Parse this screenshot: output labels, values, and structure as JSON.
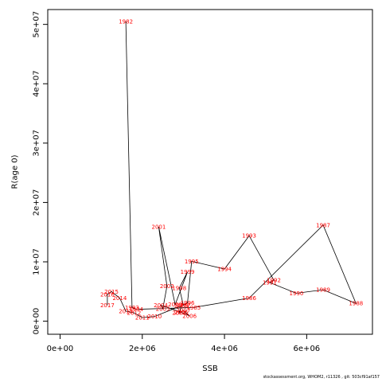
{
  "chart_data": {
    "type": "scatter",
    "xlabel": "SSB",
    "ylabel": "R(age 0)",
    "xlim": [
      -300000,
      7600000
    ],
    "ylim": [
      -2200000,
      52500000
    ],
    "x_ticks": [
      {
        "value": 0,
        "label": "0e+00"
      },
      {
        "value": 2000000,
        "label": "2e+06"
      },
      {
        "value": 4000000,
        "label": "4e+06"
      },
      {
        "value": 6000000,
        "label": "6e+06"
      }
    ],
    "y_ticks": [
      {
        "value": 0,
        "label": "0e+00"
      },
      {
        "value": 10000000,
        "label": "1e+07"
      },
      {
        "value": 20000000,
        "label": "2e+07"
      },
      {
        "value": 30000000,
        "label": "3e+07"
      },
      {
        "value": 40000000,
        "label": "4e+07"
      },
      {
        "value": 50000000,
        "label": "5e+07"
      }
    ],
    "line_color": "#000000",
    "label_color": "#ff0000",
    "points": [
      {
        "year": "1982",
        "ssb": 1600000,
        "rec": 50500000
      },
      {
        "year": "1983",
        "ssb": 1750000,
        "rec": 2300000
      },
      {
        "year": "1984",
        "ssb": 1850000,
        "rec": 2000000
      },
      {
        "year": "1985",
        "ssb": 3250000,
        "rec": 2300000
      },
      {
        "year": "1986",
        "ssb": 4600000,
        "rec": 3900000
      },
      {
        "year": "1987",
        "ssb": 6400000,
        "rec": 16200000
      },
      {
        "year": "1988",
        "ssb": 7200000,
        "rec": 3000000
      },
      {
        "year": "1989",
        "ssb": 6400000,
        "rec": 5300000
      },
      {
        "year": "1990",
        "ssb": 5750000,
        "rec": 4700000
      },
      {
        "year": "1991",
        "ssb": 5100000,
        "rec": 6500000
      },
      {
        "year": "1992",
        "ssb": 5200000,
        "rec": 6900000
      },
      {
        "year": "1993",
        "ssb": 4600000,
        "rec": 14400000
      },
      {
        "year": "1994",
        "ssb": 4000000,
        "rec": 8800000
      },
      {
        "year": "1995",
        "ssb": 3200000,
        "rec": 10100000
      },
      {
        "year": "1996",
        "ssb": 3100000,
        "rec": 3100000
      },
      {
        "year": "1997",
        "ssb": 3000000,
        "rec": 2700000
      },
      {
        "year": "1998",
        "ssb": 2900000,
        "rec": 5600000
      },
      {
        "year": "1999",
        "ssb": 3100000,
        "rec": 8300000
      },
      {
        "year": "2000",
        "ssb": 2800000,
        "rec": 2800000
      },
      {
        "year": "2001",
        "ssb": 2400000,
        "rec": 15900000
      },
      {
        "year": "2002",
        "ssb": 2600000,
        "rec": 5900000
      },
      {
        "year": "2003",
        "ssb": 2500000,
        "rec": 2100000
      },
      {
        "year": "2004",
        "ssb": 2450000,
        "rec": 2700000
      },
      {
        "year": "2005",
        "ssb": 2950000,
        "rec": 1500000
      },
      {
        "year": "2006",
        "ssb": 3150000,
        "rec": 900000
      },
      {
        "year": "2007",
        "ssb": 3000000,
        "rec": 1800000
      },
      {
        "year": "2008",
        "ssb": 2900000,
        "rec": 1400000
      },
      {
        "year": "2009",
        "ssb": 2950000,
        "rec": 2600000
      },
      {
        "year": "2010",
        "ssb": 2300000,
        "rec": 800000
      },
      {
        "year": "2011",
        "ssb": 2000000,
        "rec": 600000
      },
      {
        "year": "2012",
        "ssb": 1800000,
        "rec": 1400000
      },
      {
        "year": "2013",
        "ssb": 1600000,
        "rec": 1700000
      },
      {
        "year": "2014",
        "ssb": 1450000,
        "rec": 3900000
      },
      {
        "year": "2015",
        "ssb": 1250000,
        "rec": 5000000
      },
      {
        "year": "2016",
        "ssb": 1150000,
        "rec": 4500000
      },
      {
        "year": "2017",
        "ssb": 1150000,
        "rec": 2700000
      }
    ]
  },
  "footer": "stockassessment.org, WHOM2, r11326 , git: 503cf91af157"
}
